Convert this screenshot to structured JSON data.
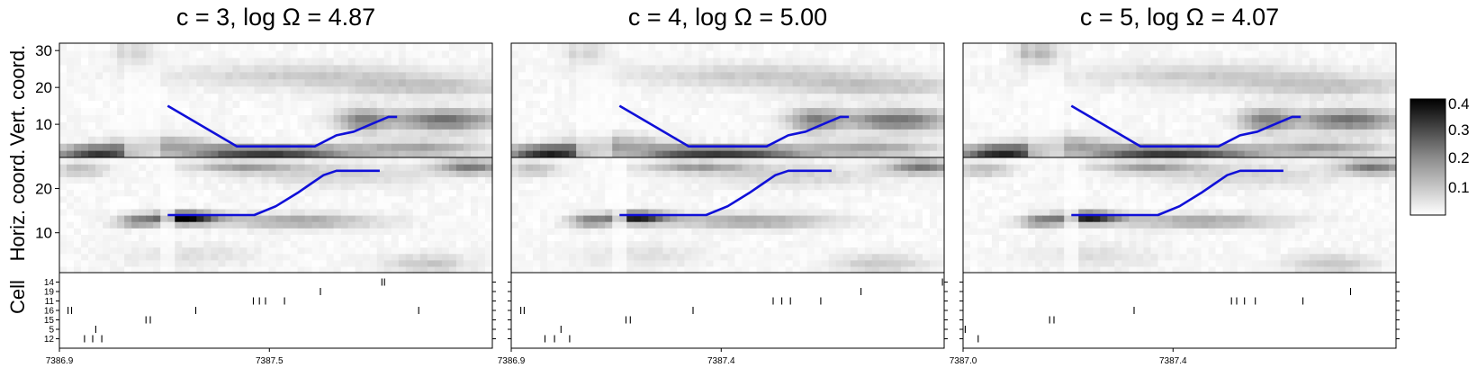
{
  "chart_data": {
    "type": "heatmap",
    "colorbar": {
      "min": 0,
      "max": 0.4,
      "ticks": [
        "0.4",
        "0.3",
        "0.2",
        "0.1"
      ]
    },
    "row_labels": {
      "vertical": "Vert. coord.",
      "horizontal": "Horiz. coord.",
      "cell": "Cell"
    },
    "vert_ticks": [
      "30",
      "20",
      "10"
    ],
    "horiz_ticks": [
      "20",
      "10"
    ],
    "cell_ids": [
      "14",
      "19",
      "11",
      "16",
      "15",
      "5",
      "12"
    ],
    "panels": [
      {
        "title": "c = 3, log Ω = 4.87",
        "x_ticks": [
          "7386.9",
          "7387.5"
        ],
        "vertical_path": [
          [
            0.25,
            15
          ],
          [
            0.41,
            4
          ],
          [
            0.59,
            4
          ],
          [
            0.64,
            7
          ],
          [
            0.68,
            8
          ],
          [
            0.72,
            10
          ],
          [
            0.76,
            12
          ],
          [
            0.78,
            12
          ]
        ],
        "horizontal_path": [
          [
            0.25,
            14
          ],
          [
            0.45,
            14
          ],
          [
            0.5,
            16
          ],
          [
            0.55,
            19
          ],
          [
            0.58,
            21
          ],
          [
            0.61,
            23
          ],
          [
            0.64,
            24
          ],
          [
            0.74,
            24
          ]
        ],
        "spikes": [
          [
            0.745,
            0.751
          ],
          [
            0.603
          ],
          [
            0.448,
            0.462,
            0.476,
            0.52
          ],
          [
            0.02,
            0.028,
            0.315,
            0.83
          ],
          [
            0.2,
            0.21
          ],
          [
            0.084
          ],
          [
            0.058,
            0.077,
            0.098
          ]
        ]
      },
      {
        "title": "c = 4, log Ω = 5.00",
        "x_ticks": [
          "7386.9",
          "7387.4"
        ],
        "vertical_path": [
          [
            0.25,
            15
          ],
          [
            0.41,
            4
          ],
          [
            0.59,
            4
          ],
          [
            0.64,
            7
          ],
          [
            0.68,
            8
          ],
          [
            0.72,
            10
          ],
          [
            0.76,
            12
          ],
          [
            0.78,
            12
          ]
        ],
        "horizontal_path": [
          [
            0.25,
            14
          ],
          [
            0.45,
            14
          ],
          [
            0.5,
            16
          ],
          [
            0.55,
            19
          ],
          [
            0.58,
            21
          ],
          [
            0.61,
            23
          ],
          [
            0.64,
            24
          ],
          [
            0.74,
            24
          ]
        ],
        "spikes": [
          [
            0.996
          ],
          [
            0.808
          ],
          [
            0.605,
            0.625,
            0.645,
            0.715
          ],
          [
            0.022,
            0.03,
            0.42
          ],
          [
            0.265,
            0.275
          ],
          [
            0.115
          ],
          [
            0.078,
            0.1,
            0.135
          ]
        ]
      },
      {
        "title": "c = 5, log Ω = 4.07",
        "x_ticks": [
          "7387.0",
          "7387.4"
        ],
        "vertical_path": [
          [
            0.25,
            15
          ],
          [
            0.41,
            4
          ],
          [
            0.59,
            4
          ],
          [
            0.64,
            7
          ],
          [
            0.68,
            8
          ],
          [
            0.72,
            10
          ],
          [
            0.76,
            12
          ],
          [
            0.78,
            12
          ]
        ],
        "horizontal_path": [
          [
            0.25,
            14
          ],
          [
            0.45,
            14
          ],
          [
            0.5,
            16
          ],
          [
            0.55,
            19
          ],
          [
            0.58,
            21
          ],
          [
            0.61,
            23
          ],
          [
            0.64,
            24
          ],
          [
            0.74,
            24
          ]
        ],
        "spikes": [
          [],
          [
            0.895
          ],
          [
            0.62,
            0.632,
            0.65,
            0.675,
            0.785
          ],
          [
            0.395
          ],
          [
            0.2,
            0.21
          ],
          [
            0.005
          ],
          [
            0.035
          ]
        ]
      }
    ]
  }
}
